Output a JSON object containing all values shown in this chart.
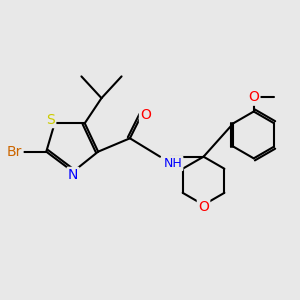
{
  "background_color": "#e8e8e8",
  "atom_colors": {
    "S": "#cccc00",
    "N": "#0000ff",
    "O": "#ff0000",
    "Br": "#cc6600",
    "C": "#000000",
    "H": "#000000"
  },
  "bond_color": "#000000",
  "bond_width": 1.5,
  "font_size": 9
}
